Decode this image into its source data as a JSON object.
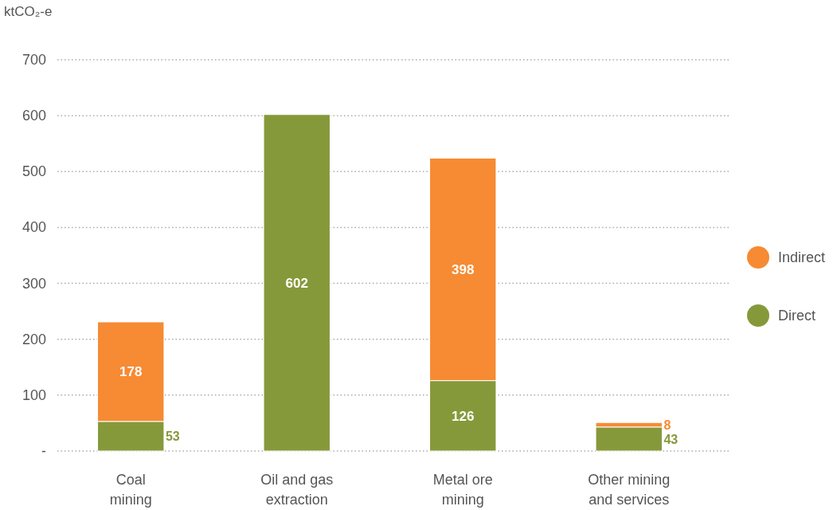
{
  "chart_data": {
    "type": "bar",
    "ylabel": "ktCO₂-e",
    "categories": [
      "Coal\nmining",
      "Oil and gas\nextraction",
      "Metal ore\nmining",
      "Other mining\nand services"
    ],
    "stacked": true,
    "data_labels": true,
    "grid": "y",
    "legend": "right",
    "ylim": [
      0,
      700
    ],
    "yticks": [
      {
        "value": 0,
        "label": "-"
      },
      100,
      200,
      300,
      400,
      500,
      600,
      700
    ],
    "series": [
      {
        "name": "Direct",
        "color": "#86993a",
        "values": [
          53,
          602,
          126,
          43
        ]
      },
      {
        "name": "Indirect",
        "color": "#f68b33",
        "values": [
          178,
          null,
          398,
          8
        ]
      }
    ]
  }
}
